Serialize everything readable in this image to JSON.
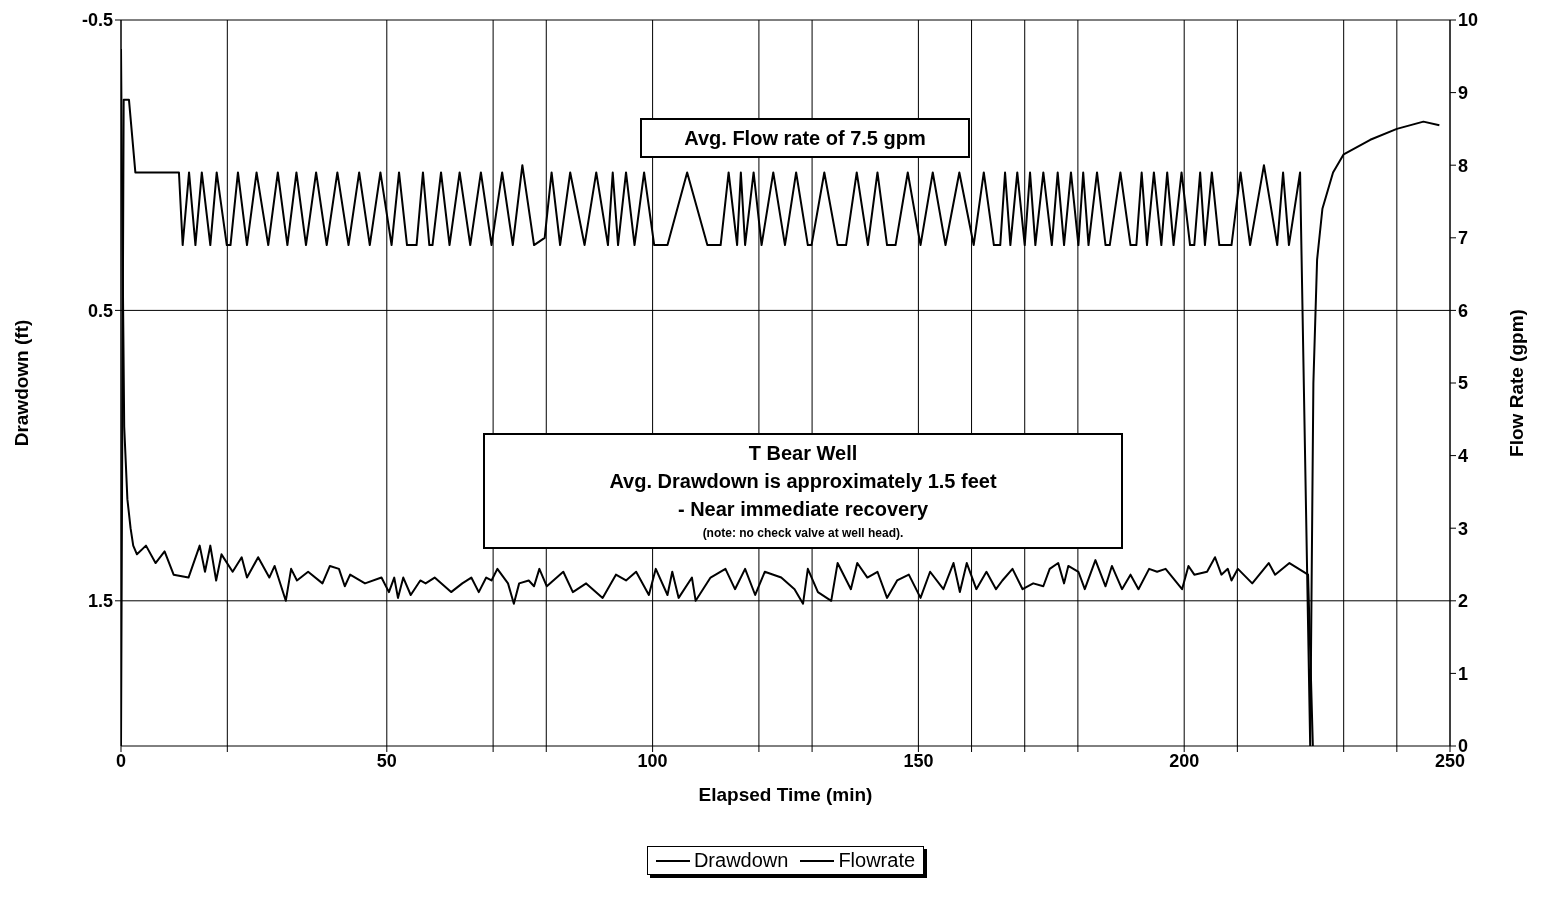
{
  "chart_data": {
    "type": "line",
    "xlabel": "Elapsed Time (min)",
    "ylabel": "Drawdown (ft)",
    "y2label": "Flow Rate (gpm)",
    "xlim": [
      0,
      250
    ],
    "xticks": [
      0,
      {
        "value": 20,
        "label": null
      },
      50,
      {
        "value": 70,
        "label": null
      },
      {
        "value": 80,
        "label": null
      },
      100,
      {
        "value": 120,
        "label": null
      },
      {
        "value": 130,
        "label": null
      },
      150,
      {
        "value": 160,
        "label": null
      },
      {
        "value": 170,
        "label": null
      },
      {
        "value": 180,
        "label": null
      },
      200,
      {
        "value": 210,
        "label": null
      },
      {
        "value": 230,
        "label": null
      },
      {
        "value": 240,
        "label": null
      },
      250
    ],
    "ylim": [
      2,
      -0.5
    ],
    "yticks": [
      -0.5,
      0.5,
      1.5
    ],
    "y2lim": [
      0,
      10
    ],
    "y2ticks": [
      0,
      1,
      2,
      3,
      4,
      5,
      6,
      7,
      8,
      9,
      10
    ],
    "grid": true,
    "legend": "bottom",
    "line_style": "solid",
    "marker": "none",
    "annotations": [
      "Avg. Flow rate of 7.5 gpm",
      "T Bear Well\nAvg. Drawdown is approximately 1.5 feet\n- Near immediate recovery\n(note: no check valve at well head)."
    ],
    "series": [
      {
        "name": "Drawdown",
        "color": "#000000",
        "x": [
          0,
          0.3,
          0.6,
          1.2,
          1.8,
          2.3,
          3.0,
          4.7,
          6.5,
          8.2,
          9.9,
          12.7,
          14.8,
          15.8,
          16.8,
          17.9,
          18.9,
          21.0,
          22.7,
          23.7,
          25.8,
          27.9,
          28.9,
          31.0,
          32.0,
          33.1,
          35.2,
          37.9,
          39.3,
          41.0,
          42.1,
          43.1,
          45.9,
          49.0,
          50.4,
          51.4,
          52.1,
          53.1,
          54.5,
          56.3,
          57.3,
          59.0,
          62.1,
          64.2,
          65.9,
          67.3,
          68.7,
          69.7,
          70.8,
          72.8,
          73.9,
          74.9,
          76.7,
          77.7,
          78.7,
          80.1,
          83.2,
          85.0,
          87.5,
          90.6,
          93.1,
          95.0,
          96.9,
          99.3,
          100.6,
          102.8,
          103.7,
          104.9,
          107.4,
          108.1,
          110.9,
          113.7,
          115.5,
          117.4,
          119.3,
          121.1,
          124.2,
          126.7,
          128.3,
          129.2,
          131.1,
          133.6,
          134.8,
          137.3,
          138.5,
          140.4,
          142.3,
          144.1,
          146.0,
          148.2,
          150.4,
          152.2,
          154.7,
          156.6,
          157.8,
          159.1,
          160.9,
          162.8,
          164.6,
          165.8,
          167.7,
          169.6,
          171.6,
          173.5,
          174.7,
          176.3,
          177.4,
          178.2,
          180.1,
          181.3,
          183.3,
          185.2,
          186.4,
          188.3,
          189.9,
          191.4,
          193.4,
          194.9,
          196.5,
          199.6,
          200.8,
          201.9,
          204.3,
          205.8,
          207.0,
          208.2,
          208.9,
          210.1,
          212.8,
          215.9,
          217.1,
          219.8,
          223.3,
          224.2
        ],
        "values": [
          -0.4,
          0.3,
          0.9,
          1.15,
          1.25,
          1.31,
          1.34,
          1.31,
          1.37,
          1.33,
          1.41,
          1.42,
          1.31,
          1.4,
          1.31,
          1.43,
          1.34,
          1.4,
          1.35,
          1.42,
          1.35,
          1.42,
          1.38,
          1.5,
          1.39,
          1.43,
          1.4,
          1.44,
          1.38,
          1.39,
          1.45,
          1.41,
          1.44,
          1.42,
          1.47,
          1.42,
          1.49,
          1.42,
          1.48,
          1.43,
          1.44,
          1.42,
          1.47,
          1.44,
          1.42,
          1.47,
          1.42,
          1.43,
          1.39,
          1.44,
          1.51,
          1.44,
          1.43,
          1.45,
          1.39,
          1.45,
          1.4,
          1.47,
          1.44,
          1.49,
          1.41,
          1.43,
          1.4,
          1.48,
          1.39,
          1.48,
          1.4,
          1.49,
          1.42,
          1.5,
          1.42,
          1.39,
          1.46,
          1.39,
          1.48,
          1.4,
          1.42,
          1.46,
          1.51,
          1.39,
          1.47,
          1.5,
          1.37,
          1.46,
          1.37,
          1.42,
          1.4,
          1.49,
          1.43,
          1.41,
          1.49,
          1.4,
          1.46,
          1.37,
          1.47,
          1.37,
          1.46,
          1.4,
          1.46,
          1.43,
          1.39,
          1.46,
          1.44,
          1.45,
          1.39,
          1.37,
          1.44,
          1.38,
          1.4,
          1.46,
          1.36,
          1.45,
          1.38,
          1.46,
          1.41,
          1.46,
          1.39,
          1.4,
          1.39,
          1.46,
          1.38,
          1.41,
          1.4,
          1.35,
          1.41,
          1.39,
          1.43,
          1.39,
          1.44,
          1.37,
          1.41,
          1.37,
          1.41,
          2.0
        ]
      },
      {
        "name": "Flowrate",
        "color": "#000000",
        "axis": "y2",
        "x": [
          0,
          0.5,
          1.5,
          2.7,
          10.9,
          11.6,
          12.8,
          14.0,
          15.2,
          16.8,
          18,
          19.9,
          20.6,
          22,
          23.7,
          25.5,
          27.7,
          29.5,
          31.3,
          33,
          34.8,
          36.7,
          38.7,
          40.7,
          42.8,
          44.8,
          46.8,
          48.8,
          50.9,
          52.3,
          53.8,
          55.6,
          56.8,
          58.0,
          58.6,
          60.2,
          61.8,
          63.7,
          65.7,
          67.7,
          69.7,
          71.7,
          73.7,
          75.5,
          77.7,
          79.7,
          81,
          82.6,
          84.5,
          87.2,
          89.4,
          91.6,
          92.5,
          93.5,
          95,
          96.6,
          98.4,
          100.3,
          102.8,
          106.5,
          110.3,
          112.8,
          114.3,
          115.9,
          116.6,
          117.4,
          119,
          120.5,
          122.7,
          124.9,
          127,
          129.2,
          129.9,
          132.3,
          134.8,
          136.4,
          138.4,
          140.5,
          142.3,
          144.1,
          145.7,
          148,
          150.4,
          152.7,
          155.1,
          157.7,
          160.4,
          162.3,
          164.2,
          165.4,
          166.3,
          167.3,
          168.6,
          170,
          171,
          172,
          173.5,
          175.1,
          176.2,
          177.4,
          178.7,
          180.1,
          181,
          182,
          183.6,
          185.2,
          186,
          188,
          189.9,
          191,
          192,
          193,
          194.3,
          195.7,
          196.8,
          198,
          199.5,
          201.1,
          201.9,
          203,
          203.9,
          205.2,
          206.6,
          208.9,
          210.6,
          212.4,
          215,
          217.5,
          218.6,
          219.7,
          221.8,
          223.7,
          224.3,
          225,
          226,
          228,
          230,
          235,
          240,
          245,
          248
        ],
        "values": [
          0,
          8.9,
          8.9,
          7.9,
          7.9,
          6.9,
          7.9,
          6.9,
          7.9,
          6.9,
          7.9,
          6.9,
          6.9,
          7.9,
          6.9,
          7.9,
          6.9,
          7.9,
          6.9,
          7.9,
          6.9,
          7.9,
          6.9,
          7.9,
          6.9,
          7.9,
          6.9,
          7.9,
          6.9,
          7.9,
          6.9,
          6.9,
          7.9,
          6.9,
          6.9,
          7.9,
          6.9,
          7.9,
          6.9,
          7.9,
          6.9,
          7.9,
          6.9,
          8.0,
          6.9,
          7.0,
          7.9,
          6.9,
          7.9,
          6.9,
          7.9,
          6.9,
          7.9,
          6.9,
          7.9,
          6.9,
          7.9,
          6.9,
          6.9,
          7.9,
          6.9,
          6.9,
          7.9,
          6.9,
          7.9,
          6.9,
          7.9,
          6.9,
          7.9,
          6.9,
          7.9,
          6.9,
          6.9,
          7.9,
          6.9,
          6.9,
          7.9,
          6.9,
          7.9,
          6.9,
          6.9,
          7.9,
          6.9,
          7.9,
          6.9,
          7.9,
          6.9,
          7.9,
          6.9,
          6.9,
          7.9,
          6.9,
          7.9,
          6.9,
          7.9,
          6.9,
          7.9,
          6.9,
          7.9,
          6.9,
          7.9,
          6.9,
          7.9,
          6.9,
          7.9,
          6.9,
          6.9,
          7.9,
          6.9,
          6.9,
          7.9,
          6.9,
          7.9,
          6.9,
          7.9,
          6.9,
          7.9,
          6.9,
          6.9,
          7.9,
          6.9,
          7.9,
          6.9,
          6.9,
          7.9,
          6.9,
          8.0,
          6.9,
          7.9,
          6.9,
          7.9,
          0,
          5,
          6.7,
          7.4,
          7.9,
          8.15,
          8.35,
          8.5,
          8.6,
          8.55
        ]
      }
    ]
  }
}
